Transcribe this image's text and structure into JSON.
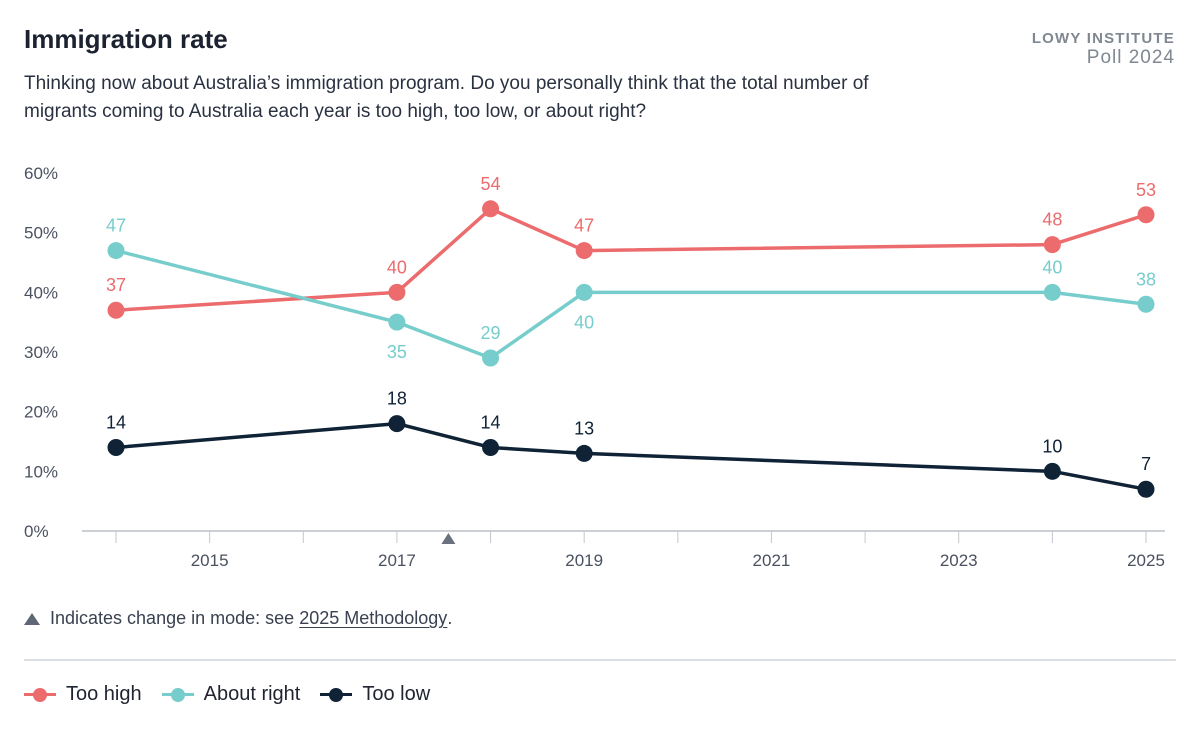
{
  "header": {
    "title": "Immigration rate",
    "subtitle": "Thinking now about Australia’s immigration program. Do you personally think that the total number of migrants coming to Australia each year is too high, too low, or about right?",
    "brand_org": "LOWY INSTITUTE",
    "brand_poll": "Poll 2024"
  },
  "note": {
    "text": "Indicates change in mode: see ",
    "link": "2025 Methodology",
    "suffix": "."
  },
  "chart_data": {
    "type": "line",
    "title": "Immigration rate",
    "xlabel": "",
    "ylabel": "",
    "ylim": [
      0,
      60
    ],
    "xlim": [
      2014,
      2025
    ],
    "yticks": [
      "0%",
      "10%",
      "20%",
      "30%",
      "40%",
      "50%",
      "60%"
    ],
    "xticks": [
      "2015",
      "2017",
      "2019",
      "2021",
      "2023",
      "2025"
    ],
    "mode_change_year": 2017.55,
    "grid": false,
    "legend_position": "bottom-left",
    "series": [
      {
        "name": "Too high",
        "color": "#ec6b6d",
        "x": [
          2014,
          2017,
          2018,
          2019,
          2024,
          2025
        ],
        "values": [
          37,
          40,
          54,
          47,
          48,
          53
        ]
      },
      {
        "name": "About right",
        "color": "#76cdcc",
        "x": [
          2014,
          2017,
          2018,
          2019,
          2024,
          2025
        ],
        "values": [
          47,
          35,
          29,
          40,
          40,
          38
        ]
      },
      {
        "name": "Too low",
        "color": "#0f2236",
        "x": [
          2014,
          2017,
          2018,
          2019,
          2024,
          2025
        ],
        "values": [
          14,
          18,
          14,
          13,
          10,
          7
        ]
      }
    ]
  }
}
